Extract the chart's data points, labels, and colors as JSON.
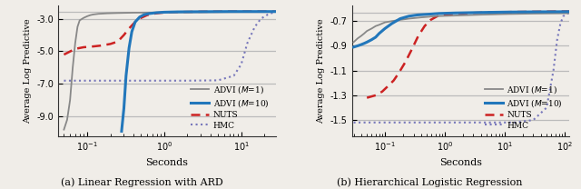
{
  "fig_width": 6.4,
  "fig_height": 2.08,
  "dpi": 100,
  "plot_a": {
    "title": "(a) Linear Regression with ARD",
    "xlabel": "Seconds",
    "ylabel": "Average Log Predictive",
    "xlim": [
      0.042,
      28
    ],
    "ylim": [
      -10.2,
      -2.2
    ],
    "yticks": [
      -9,
      -7,
      -5,
      -3
    ],
    "hline_y": -2.6,
    "hline_color": "#bbbbbb",
    "series": {
      "advi1": {
        "color": "#888888",
        "lw": 1.3,
        "x": [
          0.05,
          0.055,
          0.06,
          0.065,
          0.07,
          0.075,
          0.08,
          0.09,
          0.1,
          0.11,
          0.12,
          0.14,
          0.18,
          0.25,
          0.4,
          0.7,
          1.5,
          4.0,
          10.0,
          20.0,
          28.0
        ],
        "y": [
          -9.8,
          -9.2,
          -8.0,
          -6.0,
          -4.5,
          -3.5,
          -3.1,
          -2.95,
          -2.85,
          -2.78,
          -2.74,
          -2.7,
          -2.67,
          -2.65,
          -2.63,
          -2.62,
          -2.61,
          -2.6,
          -2.59,
          -2.59,
          -2.58
        ]
      },
      "advi10": {
        "color": "#2277bb",
        "lw": 2.2,
        "x": [
          0.28,
          0.3,
          0.32,
          0.35,
          0.38,
          0.42,
          0.48,
          0.55,
          0.65,
          0.8,
          1.0,
          1.5,
          3.0,
          7.0,
          15.0,
          28.0
        ],
        "y": [
          -9.9,
          -8.5,
          -6.5,
          -4.8,
          -3.8,
          -3.2,
          -2.9,
          -2.75,
          -2.68,
          -2.63,
          -2.6,
          -2.58,
          -2.57,
          -2.56,
          -2.56,
          -2.56
        ]
      },
      "nuts": {
        "color": "#cc2222",
        "lw": 1.8,
        "x": [
          0.05,
          0.07,
          0.09,
          0.12,
          0.15,
          0.2,
          0.25,
          0.3,
          0.35,
          0.42,
          0.5,
          0.6,
          0.7,
          0.85,
          1.0,
          1.5,
          3.0,
          7.0,
          15.0,
          28.0
        ],
        "y": [
          -5.2,
          -4.85,
          -4.75,
          -4.7,
          -4.65,
          -4.55,
          -4.4,
          -4.0,
          -3.6,
          -3.2,
          -2.95,
          -2.78,
          -2.7,
          -2.65,
          -2.62,
          -2.59,
          -2.57,
          -2.56,
          -2.56,
          -2.56
        ]
      },
      "hmc": {
        "color": "#7777bb",
        "lw": 1.5,
        "x": [
          0.05,
          0.1,
          0.2,
          0.5,
          1.0,
          2.0,
          5.0,
          8.0,
          10.0,
          12.0,
          15.0,
          18.0,
          22.0,
          26.0,
          28.0
        ],
        "y": [
          -6.8,
          -6.8,
          -6.8,
          -6.8,
          -6.8,
          -6.8,
          -6.78,
          -6.5,
          -5.8,
          -4.5,
          -3.5,
          -3.0,
          -2.75,
          -2.62,
          -2.58
        ]
      }
    }
  },
  "plot_b": {
    "title": "(b) Hierarchical Logistic Regression",
    "xlabel": "Seconds",
    "ylabel": "Average Log Predictive",
    "xlim": [
      0.028,
      120
    ],
    "ylim": [
      -1.63,
      -0.575
    ],
    "yticks": [
      -1.5,
      -1.3,
      -1.1,
      -0.9,
      -0.7
    ],
    "hline_y": -0.635,
    "hline_color": "#bbbbbb",
    "series": {
      "advi1": {
        "color": "#888888",
        "lw": 1.3,
        "x": [
          0.03,
          0.035,
          0.04,
          0.045,
          0.05,
          0.06,
          0.07,
          0.08,
          0.1,
          0.13,
          0.18,
          0.25,
          0.4,
          0.7,
          1.5,
          4.0,
          10.0,
          30.0,
          80.0,
          120.0
        ],
        "y": [
          -0.87,
          -0.84,
          -0.82,
          -0.8,
          -0.78,
          -0.76,
          -0.74,
          -0.73,
          -0.71,
          -0.7,
          -0.69,
          -0.68,
          -0.67,
          -0.66,
          -0.655,
          -0.648,
          -0.643,
          -0.639,
          -0.637,
          -0.636
        ]
      },
      "advi10": {
        "color": "#2277bb",
        "lw": 2.2,
        "x": [
          0.03,
          0.035,
          0.04,
          0.045,
          0.05,
          0.06,
          0.07,
          0.08,
          0.1,
          0.13,
          0.18,
          0.25,
          0.35,
          0.5,
          0.8,
          1.5,
          4.0,
          10.0,
          30.0,
          80.0,
          120.0
        ],
        "y": [
          -0.91,
          -0.9,
          -0.89,
          -0.88,
          -0.87,
          -0.85,
          -0.83,
          -0.8,
          -0.76,
          -0.72,
          -0.68,
          -0.66,
          -0.65,
          -0.645,
          -0.638,
          -0.634,
          -0.63,
          -0.627,
          -0.625,
          -0.624,
          -0.623
        ]
      },
      "nuts": {
        "color": "#cc2222",
        "lw": 1.8,
        "x": [
          0.05,
          0.07,
          0.09,
          0.11,
          0.14,
          0.17,
          0.22,
          0.28,
          0.36,
          0.46,
          0.58,
          0.75,
          1.0,
          1.5,
          2.5,
          5.0,
          12.0,
          30.0,
          80.0,
          120.0
        ],
        "y": [
          -1.32,
          -1.3,
          -1.27,
          -1.23,
          -1.18,
          -1.12,
          -1.03,
          -0.93,
          -0.82,
          -0.74,
          -0.69,
          -0.66,
          -0.65,
          -0.641,
          -0.635,
          -0.63,
          -0.626,
          -0.624,
          -0.622,
          -0.622
        ]
      },
      "hmc": {
        "color": "#7777bb",
        "lw": 1.5,
        "x": [
          0.03,
          0.08,
          0.3,
          1.0,
          5.0,
          15.0,
          30.0,
          50.0,
          65.0,
          75.0,
          85.0,
          95.0,
          105.0,
          115.0,
          120.0
        ],
        "y": [
          -1.52,
          -1.52,
          -1.52,
          -1.52,
          -1.52,
          -1.52,
          -1.5,
          -1.4,
          -1.1,
          -0.85,
          -0.72,
          -0.66,
          -0.645,
          -0.635,
          -0.632
        ]
      }
    }
  },
  "legend": {
    "advi1_label": "ADVI ($M$=1)",
    "advi10_label": "ADVI ($M$=10)",
    "nuts_label": "NUTS",
    "hmc_label": "HMC"
  },
  "bg_color": "#f0ede8"
}
